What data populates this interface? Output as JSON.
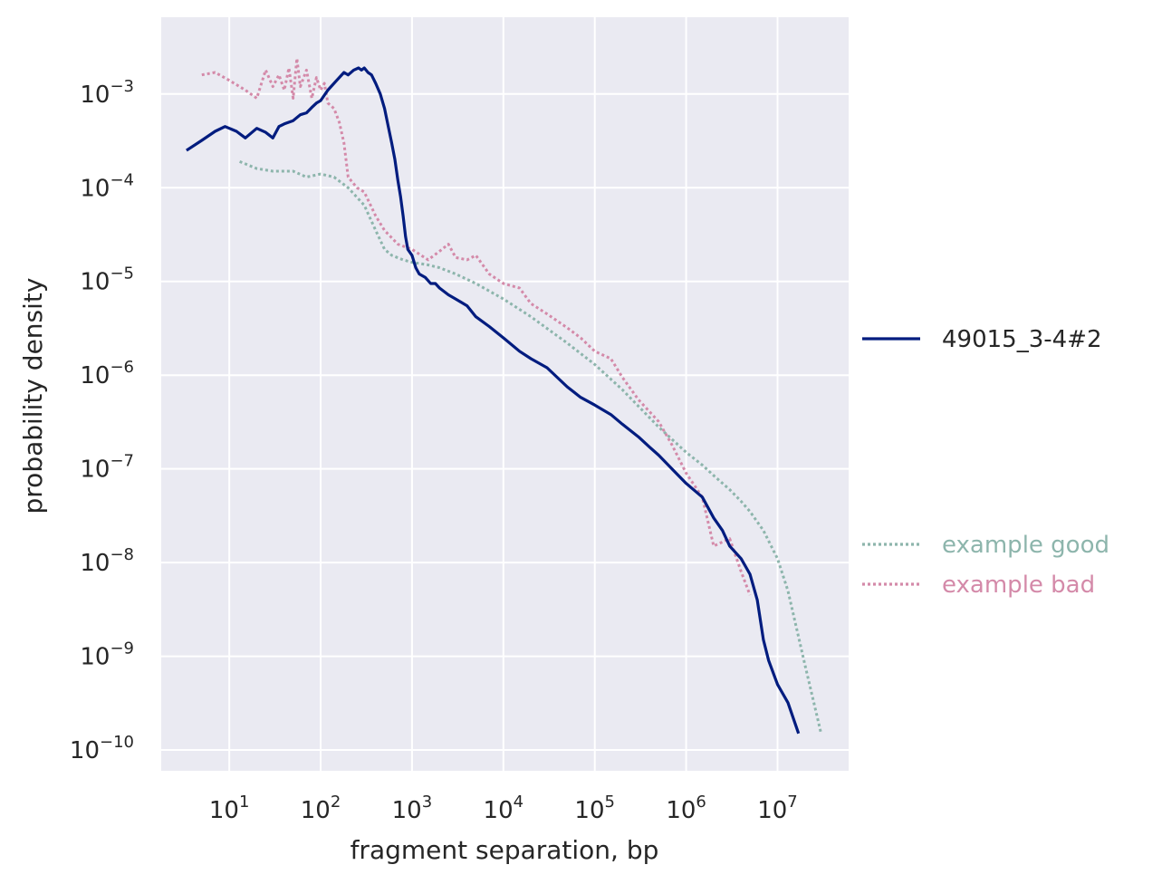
{
  "chart_data": {
    "type": "line",
    "x_scale": "log",
    "y_scale": "log",
    "xlabel": "fragment separation, bp",
    "ylabel": "probability density",
    "xlim": [
      1.8,
      60000000
    ],
    "ylim": [
      6e-11,
      0.0066
    ],
    "grid": true,
    "x_ticks": [
      {
        "base": "10",
        "exp": "1",
        "value": 10
      },
      {
        "base": "10",
        "exp": "2",
        "value": 100
      },
      {
        "base": "10",
        "exp": "3",
        "value": 1000
      },
      {
        "base": "10",
        "exp": "4",
        "value": 10000
      },
      {
        "base": "10",
        "exp": "5",
        "value": 100000
      },
      {
        "base": "10",
        "exp": "6",
        "value": 1000000
      },
      {
        "base": "10",
        "exp": "7",
        "value": 10000000
      }
    ],
    "y_ticks": [
      {
        "base": "10",
        "exp": "−3",
        "value": 0.001
      },
      {
        "base": "10",
        "exp": "−4",
        "value": 0.0001
      },
      {
        "base": "10",
        "exp": "−5",
        "value": 1e-05
      },
      {
        "base": "10",
        "exp": "−6",
        "value": 1e-06
      },
      {
        "base": "10",
        "exp": "−7",
        "value": 1e-07
      },
      {
        "base": "10",
        "exp": "−8",
        "value": 1e-08
      },
      {
        "base": "10",
        "exp": "−9",
        "value": 1e-09
      },
      {
        "base": "10",
        "exp": "−10",
        "value": 1e-10
      }
    ],
    "legend": {
      "placement": "right",
      "main": [
        {
          "name": "49015_3-4#2",
          "color": "#001c7f",
          "style": "solid"
        }
      ],
      "examples": [
        {
          "name": "example good",
          "color": "#8db5ac",
          "style": "dotted"
        },
        {
          "name": "example bad",
          "color": "#d48aa9",
          "style": "dotted"
        }
      ]
    },
    "series": [
      {
        "name": "49015_3-4#2",
        "color": "#001c7f",
        "style": "solid",
        "x": [
          3.4,
          5,
          7,
          9,
          12,
          15,
          20,
          25,
          30,
          35,
          40,
          50,
          60,
          70,
          80,
          90,
          100,
          120,
          150,
          180,
          200,
          230,
          260,
          280,
          300,
          330,
          360,
          400,
          450,
          500,
          550,
          600,
          650,
          700,
          750,
          800,
          850,
          900,
          1000,
          1100,
          1200,
          1400,
          1600,
          1800,
          2000,
          2500,
          3000,
          4000,
          5000,
          7000,
          10000,
          15000,
          20000,
          30000,
          50000,
          70000,
          100000,
          150000,
          200000,
          300000,
          400000,
          500000,
          700000,
          1000000,
          1500000,
          2000000,
          2500000,
          3000000,
          4000000,
          5000000,
          6000000,
          7000000,
          8000000,
          10000000,
          13000000,
          17000000
        ],
        "y": [
          0.00025,
          0.00032,
          0.0004,
          0.00045,
          0.0004,
          0.00034,
          0.00043,
          0.00039,
          0.00034,
          0.00045,
          0.00048,
          0.00052,
          0.0006,
          0.00063,
          0.00072,
          0.0008,
          0.00085,
          0.0011,
          0.0014,
          0.0017,
          0.0016,
          0.0018,
          0.0019,
          0.0018,
          0.0019,
          0.0017,
          0.0016,
          0.0013,
          0.001,
          0.0007,
          0.00045,
          0.0003,
          0.0002,
          0.00012,
          8e-05,
          5e-05,
          3e-05,
          2.2e-05,
          1.9e-05,
          1.4e-05,
          1.2e-05,
          1.1e-05,
          9.5e-06,
          9.5e-06,
          8.5e-06,
          7.2e-06,
          6.5e-06,
          5.5e-06,
          4.2e-06,
          3.3e-06,
          2.5e-06,
          1.8e-06,
          1.5e-06,
          1.2e-06,
          7.5e-07,
          5.8e-07,
          4.8e-07,
          3.8e-07,
          3e-07,
          2.2e-07,
          1.7e-07,
          1.4e-07,
          1e-07,
          7e-08,
          5e-08,
          3e-08,
          2.2e-08,
          1.5e-08,
          1.1e-08,
          7.5e-09,
          4e-09,
          1.5e-09,
          9e-10,
          5e-10,
          3.2e-10,
          1.5e-10
        ]
      },
      {
        "name": "example good",
        "color": "#8db5ac",
        "style": "dotted",
        "x": [
          13,
          20,
          30,
          50,
          70,
          100,
          140,
          200,
          300,
          400,
          500,
          600,
          800,
          1000,
          1500,
          2000,
          3000,
          5000,
          10000,
          20000,
          50000,
          100000,
          200000,
          500000,
          1000000,
          1500000,
          2000000,
          3000000,
          4000000,
          5000000,
          7000000,
          10000000,
          13000000,
          20000000,
          30000000
        ],
        "y": [
          0.00019,
          0.00016,
          0.00015,
          0.00015,
          0.00013,
          0.00014,
          0.00013,
          0.0001,
          6.5e-05,
          3.5e-05,
          2.2e-05,
          1.9e-05,
          1.7e-05,
          1.6e-05,
          1.5e-05,
          1.4e-05,
          1.2e-05,
          9.5e-06,
          6.5e-06,
          4.2e-06,
          2.2e-06,
          1.3e-06,
          7e-07,
          2.8e-07,
          1.5e-07,
          1.1e-07,
          8.5e-08,
          6e-08,
          4.5e-08,
          3.5e-08,
          2.2e-08,
          1.1e-08,
          5e-09,
          8e-10,
          1.5e-10
        ]
      },
      {
        "name": "example bad",
        "color": "#d48aa9",
        "style": "dotted",
        "x": [
          5,
          7,
          10,
          15,
          20,
          25,
          30,
          35,
          40,
          45,
          50,
          55,
          60,
          70,
          80,
          90,
          100,
          110,
          120,
          140,
          160,
          180,
          200,
          250,
          300,
          400,
          500,
          700,
          1000,
          1500,
          2000,
          2500,
          3000,
          4000,
          5000,
          7000,
          10000,
          15000,
          20000,
          30000,
          50000,
          70000,
          100000,
          150000,
          200000,
          300000,
          500000,
          700000,
          1000000,
          1500000,
          2000000,
          3000000,
          4000000,
          5000000
        ],
        "y": [
          0.0016,
          0.0017,
          0.0014,
          0.0011,
          0.0009,
          0.0018,
          0.0012,
          0.0016,
          0.0011,
          0.0019,
          0.0009,
          0.0024,
          0.0012,
          0.0018,
          0.0009,
          0.0015,
          0.0011,
          0.0013,
          0.0008,
          0.0007,
          0.0005,
          0.0003,
          0.00013,
          0.0001,
          9e-05,
          5e-05,
          3.5e-05,
          2.5e-05,
          2.2e-05,
          1.7e-05,
          2.1e-05,
          2.5e-05,
          1.8e-05,
          1.7e-05,
          1.9e-05,
          1.2e-05,
          9.5e-06,
          8.5e-06,
          5.8e-06,
          4.5e-06,
          3.2e-06,
          2.5e-06,
          1.8e-06,
          1.5e-06,
          9.5e-07,
          5.5e-07,
          3.2e-07,
          1.8e-07,
          9e-08,
          5e-08,
          1.5e-08,
          1.8e-08,
          8e-09,
          4.5e-09
        ]
      }
    ]
  }
}
